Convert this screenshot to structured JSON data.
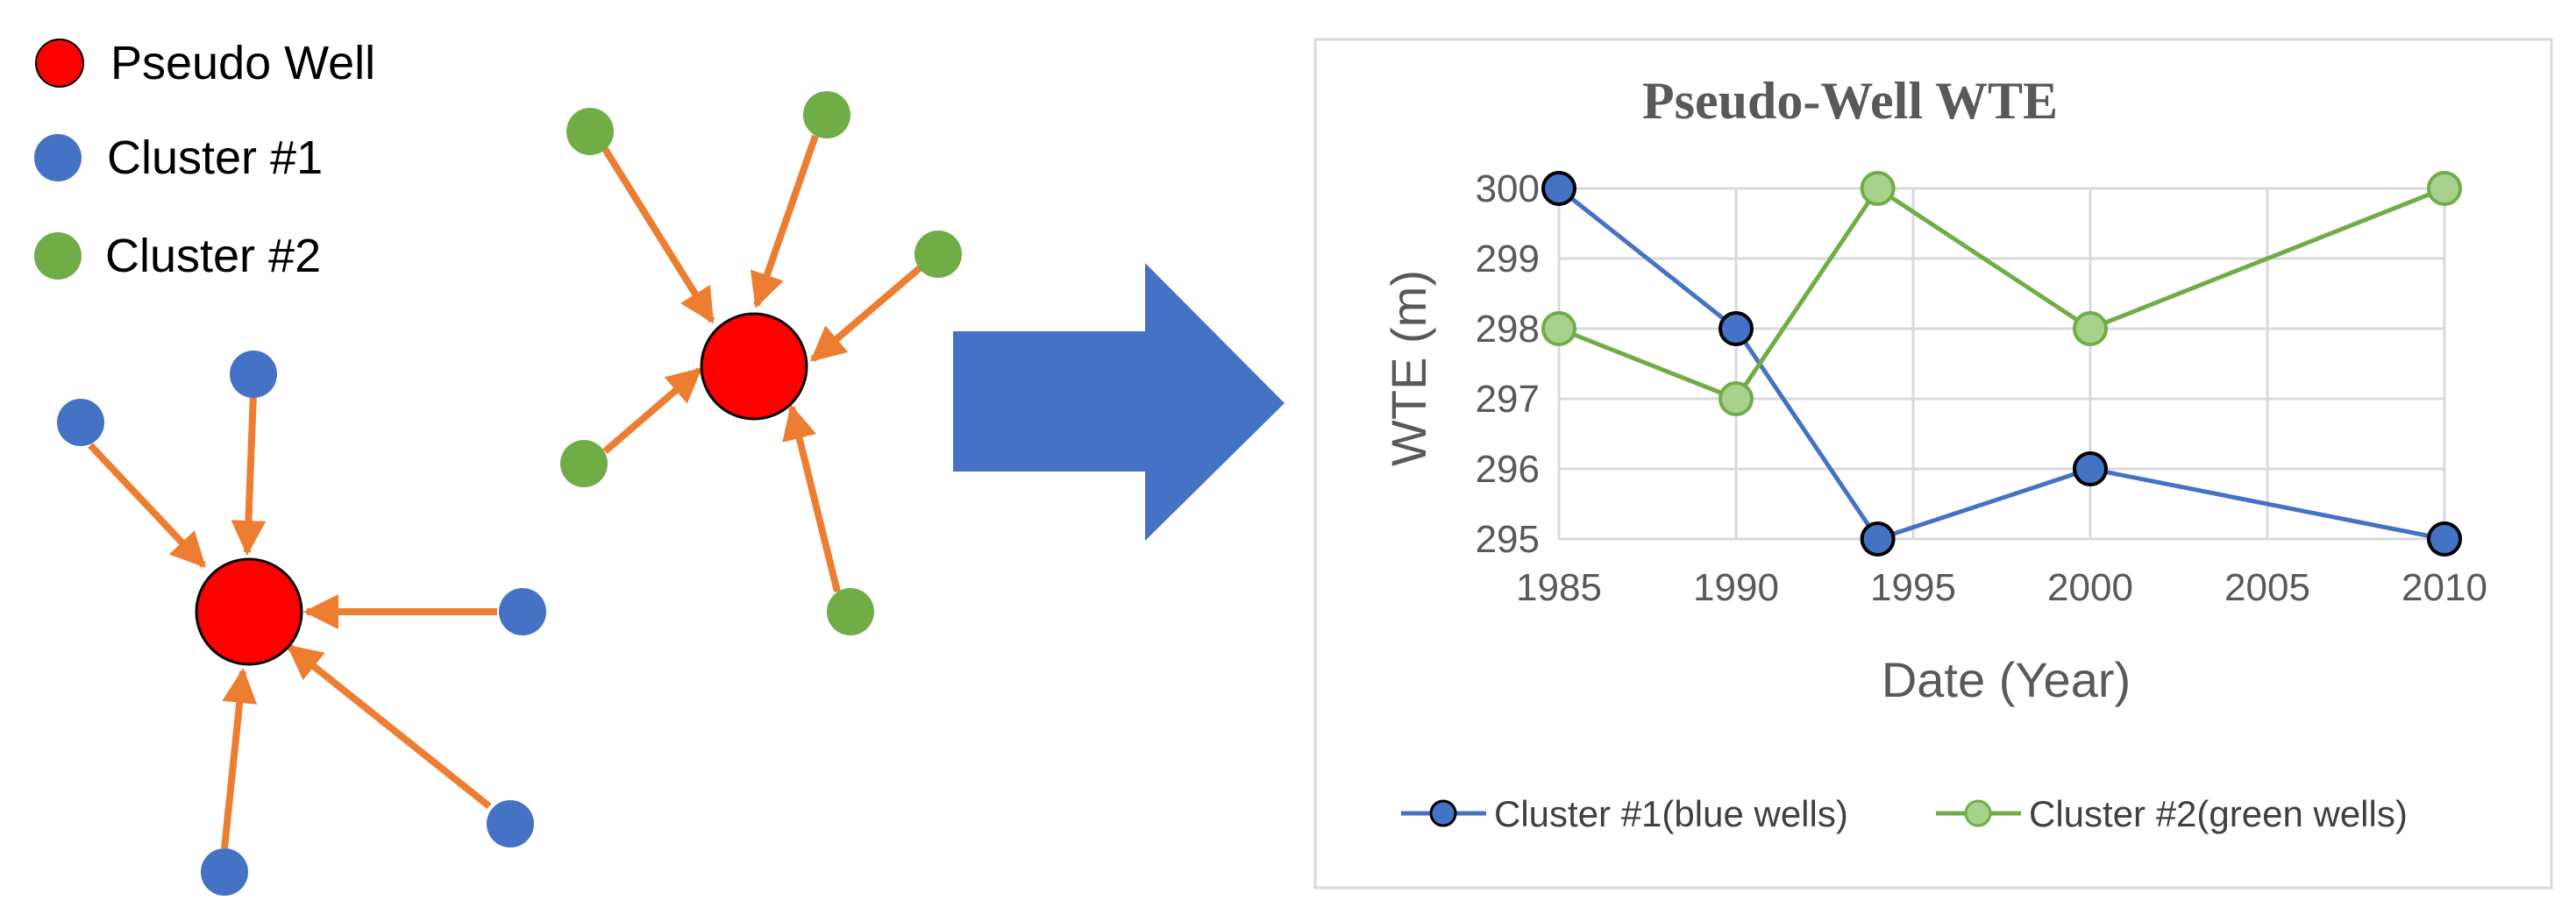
{
  "legend": [
    {
      "label": "Pseudo Well",
      "color": "#ff0000"
    },
    {
      "label": "Cluster #1",
      "color": "#4472c4"
    },
    {
      "label": "Cluster #2",
      "color": "#70ad47"
    }
  ],
  "colors": {
    "pseudo_well": "#ff0000",
    "cluster1": "#4472c4",
    "cluster2": "#70ad47",
    "arrow": "#ed7d31",
    "big_arrow": "#4472c4",
    "series1_line": "#4472c4",
    "series1_marker": "#4472c4",
    "series2_line": "#70ad47",
    "series2_marker": "#a9d18e"
  },
  "chart_data": {
    "type": "line",
    "title": "Pseudo-Well WTE",
    "xlabel": "Date (Year)",
    "ylabel": "WTE (m)",
    "xlim": [
      1985,
      2010
    ],
    "ylim": [
      295,
      300
    ],
    "xticks": [
      1985,
      1990,
      1995,
      2000,
      2005,
      2010
    ],
    "yticks": [
      295,
      296,
      297,
      298,
      299,
      300
    ],
    "grid": true,
    "legend_position": "bottom",
    "series": [
      {
        "name": "Cluster #1(blue wells)",
        "x": [
          1985,
          1990,
          1994,
          2000,
          2010
        ],
        "y": [
          300,
          298,
          295,
          296,
          295
        ]
      },
      {
        "name": "Cluster #2(green wells)",
        "x": [
          1985,
          1990,
          1994,
          2000,
          2010
        ],
        "y": [
          298,
          297,
          300,
          298,
          300
        ]
      }
    ]
  }
}
